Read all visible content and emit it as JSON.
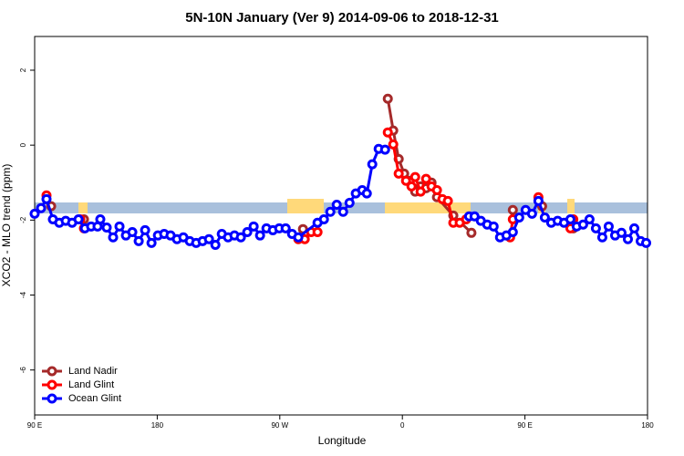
{
  "chart_data": {
    "type": "line",
    "title": "5N-10N January (Ver 9)   2014-09-06 to 2018-12-31",
    "x_label": "Longitude",
    "y_label": "XCO2 - MLO trend (ppm)",
    "xlim": [
      90,
      540
    ],
    "xticks": [
      {
        "value": 90,
        "label": "90 E"
      },
      180,
      {
        "value": 270,
        "label": "90 W"
      },
      {
        "value": 360,
        "label": "0"
      },
      {
        "value": 450,
        "label": "90 E"
      },
      {
        "value": 540,
        "label": "180"
      }
    ],
    "ylim": [
      -7.2,
      2.9
    ],
    "yticks": [
      2,
      0,
      -2,
      -4,
      -6
    ],
    "legend": "bottom-left",
    "series": [
      {
        "name": "Land Nadir",
        "color": "#a52a2a",
        "x": [
          102.1,
          null,
          126.2,
          null,
          287,
          null,
          349.3,
          353.3,
          357.3,
          361.3,
          365.3,
          369.4,
          373.4,
          377.4,
          381.4,
          385.4,
          397.4,
          410.7,
          null,
          441.1,
          null,
          462.6,
          null,
          485.5
        ],
        "values": [
          -1.63,
          null,
          -1.98,
          null,
          -2.24,
          null,
          1.24,
          0.39,
          -0.37,
          -0.76,
          -0.95,
          -1.24,
          -1.1,
          -1.15,
          -1.0,
          -1.39,
          -1.88,
          -2.34,
          null,
          -1.73,
          null,
          -1.63,
          null,
          -2.22
        ]
      },
      {
        "name": "Land Glint",
        "color": "#ff0000",
        "x": [
          98.7,
          null,
          123.5,
          126.2,
          null,
          283.6,
          288.3,
          293,
          297.7,
          null,
          349.3,
          353.3,
          357.3,
          362.7,
          366.7,
          369.4,
          373.4,
          377.4,
          381.4,
          385.4,
          389.4,
          393.4,
          397.4,
          402.1,
          406.8,
          null,
          439.1,
          441.1,
          null,
          459.9,
          null,
          483.4,
          485.5
        ],
        "values": [
          -1.34,
          null,
          -1.98,
          -2.22,
          null,
          -2.51,
          -2.51,
          -2.32,
          -2.32,
          null,
          0.34,
          0.02,
          -0.76,
          -0.95,
          -1.1,
          -0.85,
          -1.24,
          -0.9,
          -1.1,
          -1.2,
          -1.44,
          -1.49,
          -2.07,
          -2.07,
          -1.98,
          null,
          -2.46,
          -1.98,
          null,
          -1.39,
          null,
          -2.22,
          -1.98
        ]
      },
      {
        "name": "Ocean Glint",
        "color": "#0000ff",
        "x": [
          90,
          94.7,
          98.7,
          103.4,
          108.1,
          112.8,
          117.5,
          122.2,
          126.9,
          131.5,
          136.2,
          138.2,
          142.9,
          147.6,
          152.3,
          157,
          161.7,
          166.4,
          171.1,
          175.8,
          180.5,
          185.1,
          189.8,
          194.5,
          199.2,
          203.9,
          208.6,
          213.3,
          218,
          222.7,
          227.4,
          232,
          236.7,
          241.4,
          246.1,
          250.8,
          255.5,
          260.2,
          264.9,
          269.6,
          274.3,
          279,
          283.6,
          297.7,
          302.4,
          307.1,
          311.8,
          316.5,
          321.2,
          325.8,
          330.5,
          333.9,
          337.9,
          342.6,
          347.3,
          null,
          409,
          413,
          417.6,
          422.3,
          427,
          431.7,
          436.4,
          441.1,
          445.8,
          450.5,
          455.2,
          459.9,
          464.6,
          469.3,
          474,
          478.7,
          483.4,
          488,
          492.7,
          497.4,
          502.1,
          506.8,
          511.5,
          516.2,
          520.9,
          525.6,
          530.3,
          535,
          539
        ],
        "values": [
          -1.83,
          -1.68,
          -1.44,
          -1.98,
          -2.07,
          -2.02,
          -2.07,
          -1.98,
          -2.22,
          -2.17,
          -2.17,
          -1.98,
          -2.2,
          -2.46,
          -2.17,
          -2.41,
          -2.32,
          -2.56,
          -2.27,
          -2.61,
          -2.41,
          -2.37,
          -2.41,
          -2.51,
          -2.46,
          -2.56,
          -2.61,
          -2.56,
          -2.51,
          -2.66,
          -2.37,
          -2.46,
          -2.41,
          -2.46,
          -2.32,
          -2.17,
          -2.41,
          -2.22,
          -2.27,
          -2.22,
          -2.22,
          -2.37,
          -2.46,
          -2.07,
          -1.98,
          -1.78,
          -1.59,
          -1.78,
          -1.54,
          -1.29,
          -1.2,
          -1.29,
          -0.51,
          -0.1,
          -0.12,
          null,
          -1.9,
          -1.9,
          -2.02,
          -2.12,
          -2.17,
          -2.46,
          -2.41,
          -2.32,
          -1.93,
          -1.73,
          -1.83,
          -1.49,
          -1.93,
          -2.07,
          -2.02,
          -2.07,
          -1.98,
          -2.17,
          -2.12,
          -1.98,
          -2.22,
          -2.46,
          -2.17,
          -2.41,
          -2.34,
          -2.51,
          -2.22,
          -2.56,
          -2.61
        ]
      }
    ]
  }
}
